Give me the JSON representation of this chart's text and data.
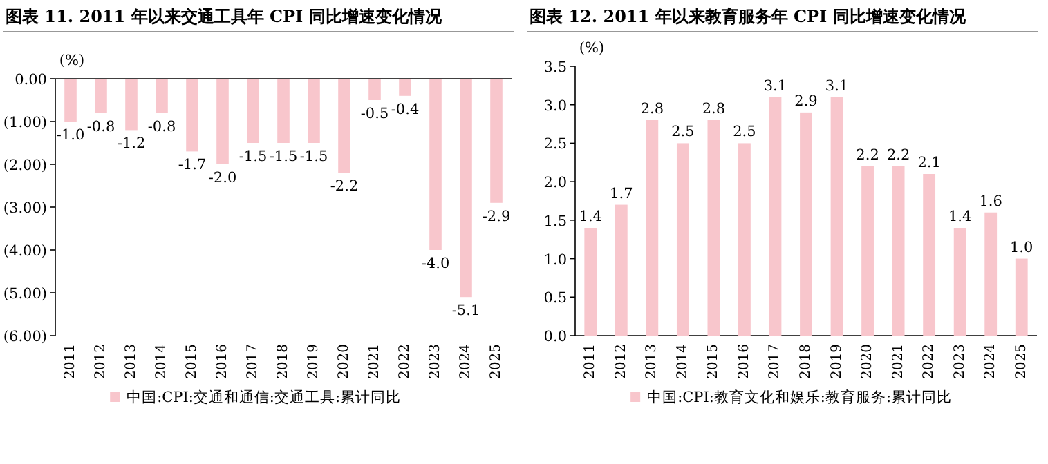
{
  "chart_data": [
    {
      "type": "bar",
      "title": "图表 11. 2011 年以来交通工具年 CPI 同比增速变化情况",
      "ylabel": "(%)",
      "categories": [
        "2011",
        "2012",
        "2013",
        "2014",
        "2015",
        "2016",
        "2017",
        "2018",
        "2019",
        "2020",
        "2021",
        "2022",
        "2023",
        "2024",
        "2025"
      ],
      "series": [
        {
          "name": "中国:CPI:交通和通信:交通工具:累计同比",
          "color": "#f8c6cc",
          "values": [
            -1.0,
            -0.8,
            -1.2,
            -0.8,
            -1.7,
            -2.0,
            -1.5,
            -1.5,
            -1.5,
            -2.2,
            -0.5,
            -0.4,
            -4.0,
            -5.1,
            -2.9
          ],
          "value_labels": [
            "-1.0",
            "-0.8",
            "-1.2",
            "-0.8",
            "-1.7",
            "-2.0",
            "-1.5",
            "-1.5",
            "-1.5",
            "-2.2",
            "-0.5",
            "-0.4",
            "-4.0",
            "-5.1",
            "-2.9"
          ]
        }
      ],
      "ylim": [
        -6,
        0
      ],
      "yticks": [
        {
          "value": 0,
          "label": "0.00"
        },
        {
          "value": -1,
          "label": "(1.00)"
        },
        {
          "value": -2,
          "label": "(2.00)"
        },
        {
          "value": -3,
          "label": "(3.00)"
        },
        {
          "value": -4,
          "label": "(4.00)"
        },
        {
          "value": -5,
          "label": "(5.00)"
        },
        {
          "value": -6,
          "label": "(6.00)"
        }
      ],
      "legend": "bottom"
    },
    {
      "type": "bar",
      "title": "图表 12. 2011 年以来教育服务年 CPI 同比增速变化情况",
      "ylabel": "(%)",
      "categories": [
        "2011",
        "2012",
        "2013",
        "2014",
        "2015",
        "2016",
        "2017",
        "2018",
        "2019",
        "2020",
        "2021",
        "2022",
        "2023",
        "2024",
        "2025"
      ],
      "series": [
        {
          "name": "中国:CPI:教育文化和娱乐:教育服务:累计同比",
          "color": "#f8c6cc",
          "values": [
            1.4,
            1.7,
            2.8,
            2.5,
            2.8,
            2.5,
            3.1,
            2.9,
            3.1,
            2.2,
            2.2,
            2.1,
            1.4,
            1.6,
            1.0
          ],
          "value_labels": [
            "1.4",
            "1.7",
            "2.8",
            "2.5",
            "2.8",
            "2.5",
            "3.1",
            "2.9",
            "3.1",
            "2.2",
            "2.2",
            "2.1",
            "1.4",
            "1.6",
            "1.0"
          ]
        }
      ],
      "ylim": [
        0,
        3.5
      ],
      "yticks": [
        {
          "value": 0,
          "label": "0.0"
        },
        {
          "value": 0.5,
          "label": "0.5"
        },
        {
          "value": 1,
          "label": "1.0"
        },
        {
          "value": 1.5,
          "label": "1.5"
        },
        {
          "value": 2,
          "label": "2.0"
        },
        {
          "value": 2.5,
          "label": "2.5"
        },
        {
          "value": 3,
          "label": "3.0"
        },
        {
          "value": 3.5,
          "label": "3.5"
        }
      ],
      "legend": "bottom"
    }
  ]
}
